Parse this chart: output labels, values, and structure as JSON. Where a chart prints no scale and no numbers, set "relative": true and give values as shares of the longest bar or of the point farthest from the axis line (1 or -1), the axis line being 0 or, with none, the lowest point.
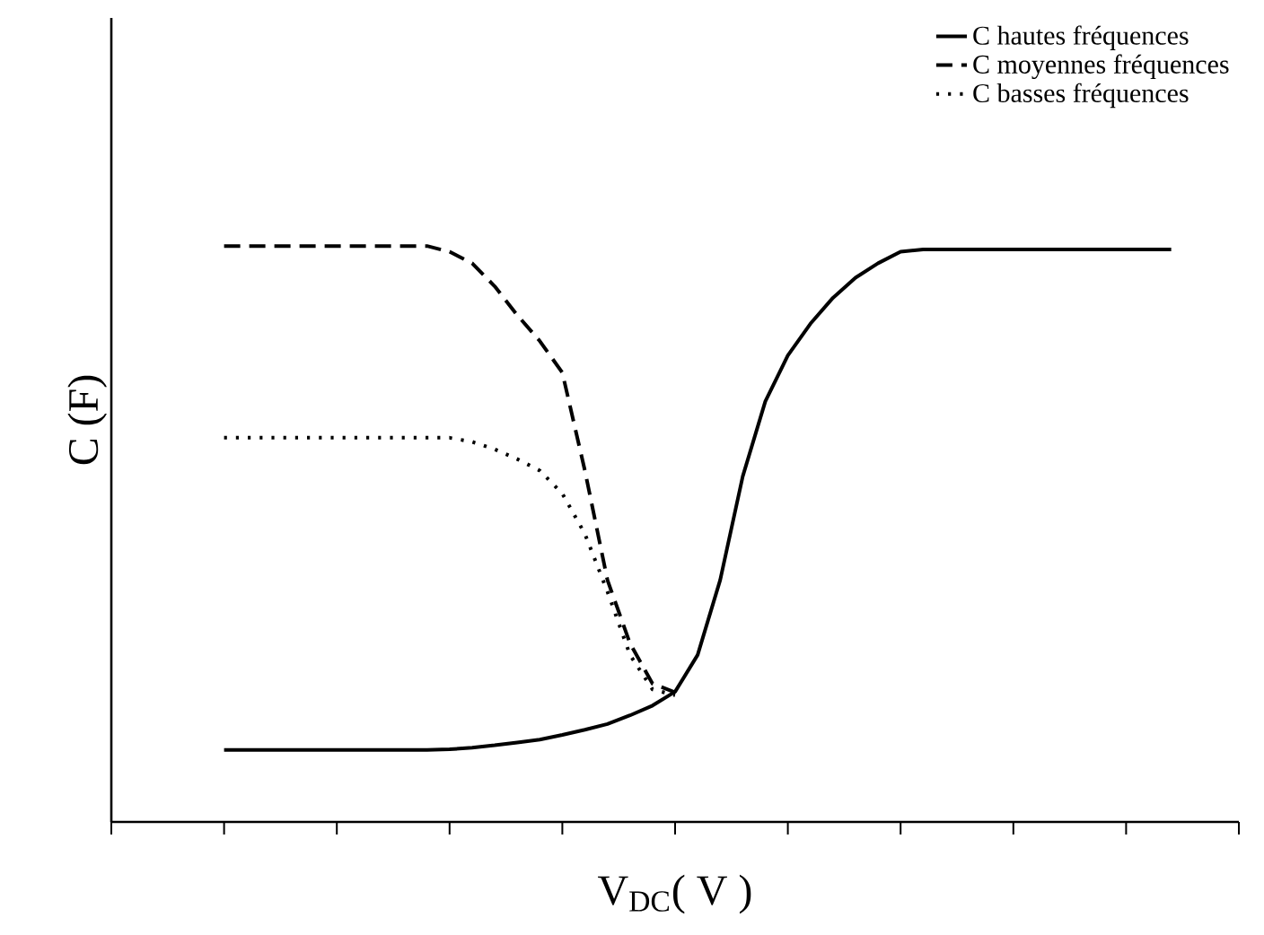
{
  "chart_data": {
    "type": "line",
    "relative": true,
    "xlabel": "V$_{DC}$( V )",
    "ylabel": "C (F)",
    "categories": [
      null,
      null,
      null,
      null,
      null,
      null,
      null,
      null,
      null,
      null,
      null,
      null,
      null,
      null,
      null,
      null,
      null,
      null,
      null,
      null,
      null,
      null,
      null,
      null,
      null,
      null,
      null,
      null,
      null,
      null,
      null,
      null,
      null,
      null,
      null,
      null,
      null,
      null,
      null,
      null,
      null,
      null,
      null
    ],
    "legend": "top right",
    "grid": false,
    "marker": "none",
    "series": [
      {
        "name": "C hautes fréquences",
        "color": "#000000",
        "line_style": "solid",
        "values": [
          0.125,
          0.125,
          0.125,
          0.125,
          0.125,
          0.125,
          0.125,
          0.125,
          0.125,
          0.125,
          0.126,
          0.129,
          0.133,
          0.138,
          0.143,
          0.151,
          0.16,
          0.17,
          0.185,
          0.202,
          0.226,
          0.29,
          0.42,
          0.6,
          0.73,
          0.81,
          0.865,
          0.91,
          0.945,
          0.97,
          0.99,
          0.994,
          0.994,
          0.994,
          0.994,
          0.994,
          0.994,
          0.994,
          0.994,
          0.994,
          0.994,
          0.994,
          0.994
        ]
      },
      {
        "name": "C moyennes fréquences",
        "color": "#000000",
        "line_style": "dashed",
        "values": [
          1.0,
          1.0,
          1.0,
          1.0,
          1.0,
          1.0,
          1.0,
          1.0,
          1.0,
          1.0,
          0.99,
          0.97,
          0.93,
          0.88,
          0.835,
          0.78,
          0.61,
          0.42,
          0.31,
          0.24,
          0.225,
          null,
          null,
          null,
          null,
          null,
          null,
          null,
          null,
          null,
          null,
          null,
          null,
          null,
          null,
          null,
          null,
          null,
          null,
          null,
          null,
          null,
          null
        ]
      },
      {
        "name": "C basses fréquences",
        "color": "#000000",
        "line_style": "dotted",
        "values": [
          0.667,
          0.667,
          0.667,
          0.667,
          0.667,
          0.667,
          0.667,
          0.667,
          0.667,
          0.667,
          0.667,
          0.66,
          0.647,
          0.63,
          0.61,
          0.57,
          0.5,
          0.4,
          0.29,
          0.23,
          0.22,
          null,
          null,
          null,
          null,
          null,
          null,
          null,
          null,
          null,
          null,
          null,
          null,
          null,
          null,
          null,
          null,
          null,
          null,
          null,
          null,
          null,
          null
        ]
      }
    ]
  }
}
